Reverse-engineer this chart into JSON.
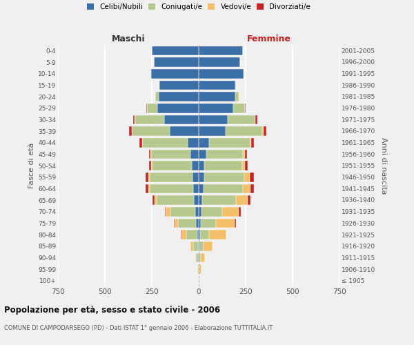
{
  "age_groups": [
    "100+",
    "95-99",
    "90-94",
    "85-89",
    "80-84",
    "75-79",
    "70-74",
    "65-69",
    "60-64",
    "55-59",
    "50-54",
    "45-49",
    "40-44",
    "35-39",
    "30-34",
    "25-29",
    "20-24",
    "15-19",
    "10-14",
    "5-9",
    "0-4"
  ],
  "birth_years": [
    "≤ 1905",
    "1906-1910",
    "1911-1915",
    "1916-1920",
    "1921-1925",
    "1926-1930",
    "1931-1935",
    "1936-1940",
    "1941-1945",
    "1946-1950",
    "1951-1955",
    "1956-1960",
    "1961-1965",
    "1966-1970",
    "1971-1975",
    "1976-1980",
    "1981-1985",
    "1986-1990",
    "1991-1995",
    "1996-2000",
    "2001-2005"
  ],
  "maschi": {
    "celibi": [
      0,
      1,
      3,
      5,
      8,
      15,
      20,
      25,
      30,
      32,
      35,
      45,
      60,
      155,
      185,
      220,
      215,
      210,
      255,
      240,
      250
    ],
    "coniugati": [
      2,
      5,
      12,
      25,
      60,
      95,
      130,
      200,
      230,
      230,
      215,
      210,
      240,
      200,
      155,
      55,
      15,
      3,
      2,
      0,
      0
    ],
    "vedovi": [
      1,
      2,
      5,
      15,
      25,
      20,
      25,
      12,
      10,
      8,
      5,
      3,
      3,
      3,
      2,
      2,
      2,
      0,
      0,
      0,
      0
    ],
    "divorziati": [
      0,
      0,
      0,
      0,
      1,
      2,
      5,
      10,
      12,
      12,
      10,
      8,
      15,
      12,
      8,
      3,
      1,
      0,
      0,
      0,
      0
    ]
  },
  "femmine": {
    "nubili": [
      0,
      1,
      2,
      4,
      6,
      12,
      15,
      20,
      25,
      28,
      30,
      42,
      55,
      145,
      155,
      185,
      195,
      195,
      240,
      220,
      235
    ],
    "coniugate": [
      2,
      4,
      10,
      20,
      50,
      80,
      110,
      180,
      210,
      215,
      200,
      195,
      220,
      195,
      145,
      60,
      20,
      5,
      2,
      0,
      0
    ],
    "vedove": [
      3,
      8,
      20,
      50,
      90,
      100,
      90,
      60,
      40,
      30,
      15,
      8,
      5,
      5,
      3,
      2,
      1,
      0,
      0,
      0,
      0
    ],
    "divorziate": [
      0,
      0,
      0,
      1,
      2,
      5,
      8,
      15,
      18,
      20,
      15,
      12,
      15,
      15,
      10,
      4,
      2,
      0,
      0,
      0,
      0
    ]
  },
  "colors": {
    "celibi": "#3a6fa8",
    "coniugati": "#b5c98e",
    "vedovi": "#f5c06a",
    "divorziati": "#cc2222"
  },
  "xlim": 750,
  "title": "Popolazione per età, sesso e stato civile - 2006",
  "subtitle": "COMUNE DI CAMPODARSEGO (PD) - Dati ISTAT 1° gennaio 2006 - Elaborazione TUTTITALIA.IT",
  "ylabel_left": "Fasce di età",
  "ylabel_right": "Anni di nascita",
  "legend_labels": [
    "Celibi/Nubili",
    "Coniugati/e",
    "Vedovi/e",
    "Divorziati/e"
  ],
  "background_color": "#f0f0f0"
}
